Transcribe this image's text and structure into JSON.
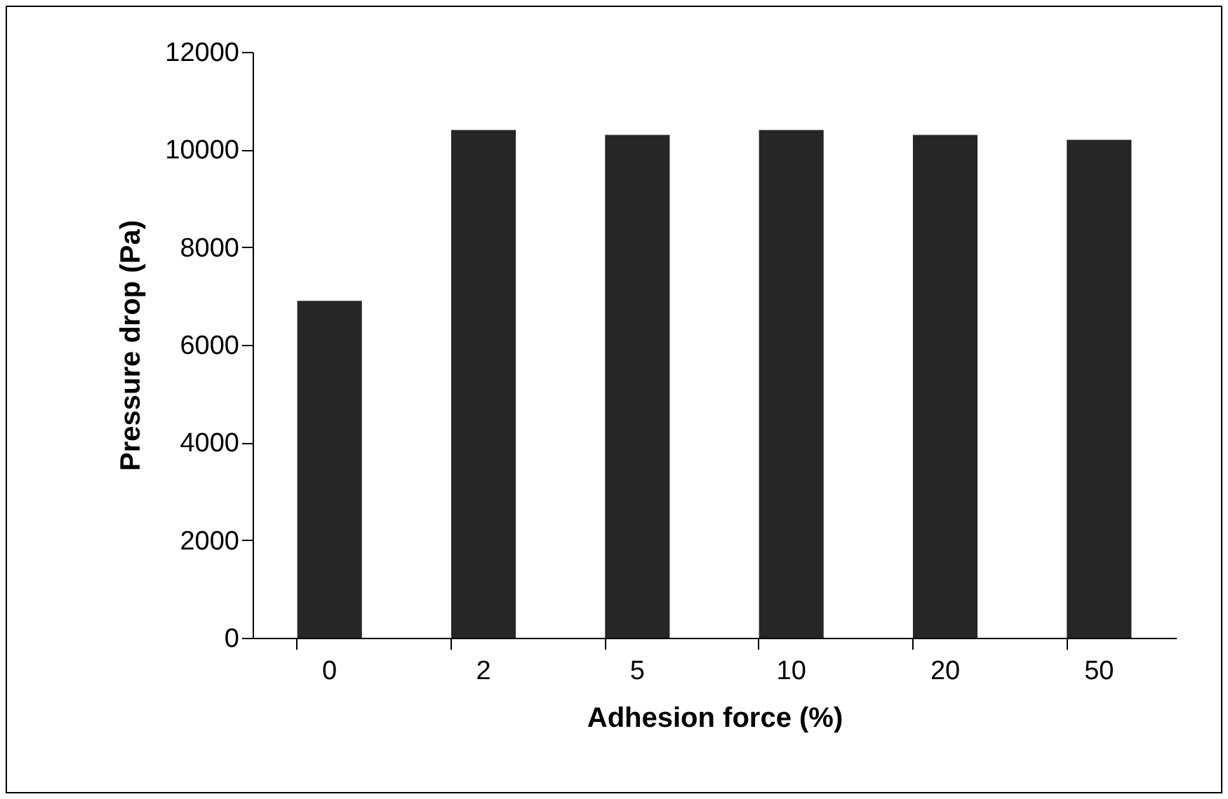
{
  "chart_data": {
    "type": "bar",
    "xlabel": "Adhesion force (%)",
    "ylabel": "Pressure drop (Pa)",
    "categories": [
      "0",
      "2",
      "5",
      "10",
      "20",
      "50"
    ],
    "values": [
      6900,
      10400,
      10300,
      10400,
      10300,
      10200
    ],
    "color": "#262626",
    "ylim": [
      0,
      12000
    ],
    "yticks": [
      0,
      2000,
      4000,
      6000,
      8000,
      10000,
      12000
    ],
    "grid": false
  }
}
